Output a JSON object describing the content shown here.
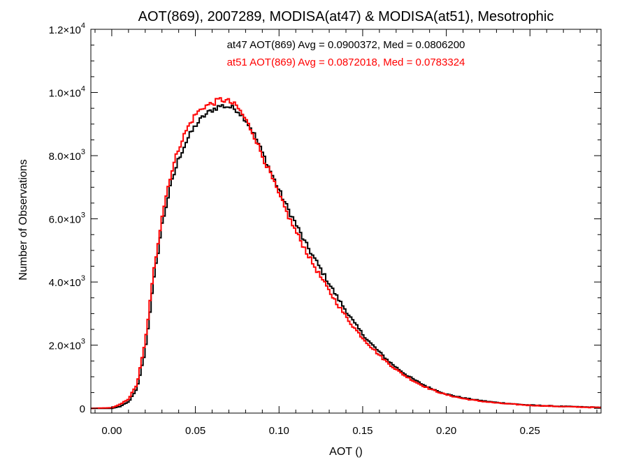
{
  "chart_data": {
    "type": "line",
    "step": true,
    "title": "AOT(869), 2007289, MODISA(at47) & MODISA(at51), Mesotrophic",
    "xlabel": "AOT ()",
    "ylabel": "Number of Observations",
    "xlim": [
      -0.0125,
      0.2925
    ],
    "ylim": [
      -150,
      12000
    ],
    "grid": false,
    "x_ticks": [
      {
        "v": 0.0,
        "label": "0.00"
      },
      {
        "v": 0.05,
        "label": "0.05"
      },
      {
        "v": 0.1,
        "label": "0.10"
      },
      {
        "v": 0.15,
        "label": "0.15"
      },
      {
        "v": 0.2,
        "label": "0.20"
      },
      {
        "v": 0.25,
        "label": "0.25"
      }
    ],
    "y_ticks": [
      {
        "v": 0,
        "mant": "0",
        "exp": ""
      },
      {
        "v": 2000,
        "mant": "2.0×10",
        "exp": "3"
      },
      {
        "v": 4000,
        "mant": "4.0×10",
        "exp": "3"
      },
      {
        "v": 6000,
        "mant": "6.0×10",
        "exp": "3"
      },
      {
        "v": 8000,
        "mant": "8.0×10",
        "exp": "3"
      },
      {
        "v": 10000,
        "mant": "1.0×10",
        "exp": "4"
      },
      {
        "v": 12000,
        "mant": "1.2×10",
        "exp": "4"
      }
    ],
    "annotations": [
      {
        "text": "at47 AOT(869) Avg = 0.0900372, Med = 0.0806200",
        "color": "#000000"
      },
      {
        "text": "at51 AOT(869) Avg = 0.0872018, Med = 0.0783324",
        "color": "#ff0000"
      }
    ],
    "series": [
      {
        "color": "#000000",
        "points": [
          [
            -0.0125,
            0
          ],
          [
            0.0,
            0
          ],
          [
            0.005,
            60
          ],
          [
            0.01,
            200
          ],
          [
            0.015,
            600
          ],
          [
            0.02,
            1800
          ],
          [
            0.025,
            4000
          ],
          [
            0.03,
            5800
          ],
          [
            0.035,
            7000
          ],
          [
            0.04,
            7900
          ],
          [
            0.045,
            8500
          ],
          [
            0.05,
            8950
          ],
          [
            0.055,
            9250
          ],
          [
            0.06,
            9450
          ],
          [
            0.065,
            9580
          ],
          [
            0.07,
            9550
          ],
          [
            0.075,
            9450
          ],
          [
            0.08,
            9150
          ],
          [
            0.085,
            8700
          ],
          [
            0.09,
            8100
          ],
          [
            0.095,
            7500
          ],
          [
            0.1,
            6900
          ],
          [
            0.105,
            6350
          ],
          [
            0.11,
            5850
          ],
          [
            0.115,
            5300
          ],
          [
            0.12,
            4850
          ],
          [
            0.125,
            4400
          ],
          [
            0.13,
            3950
          ],
          [
            0.135,
            3500
          ],
          [
            0.14,
            3100
          ],
          [
            0.145,
            2700
          ],
          [
            0.15,
            2350
          ],
          [
            0.155,
            2050
          ],
          [
            0.16,
            1780
          ],
          [
            0.165,
            1520
          ],
          [
            0.17,
            1300
          ],
          [
            0.175,
            1100
          ],
          [
            0.18,
            930
          ],
          [
            0.185,
            780
          ],
          [
            0.19,
            650
          ],
          [
            0.195,
            550
          ],
          [
            0.2,
            450
          ],
          [
            0.21,
            330
          ],
          [
            0.22,
            250
          ],
          [
            0.23,
            185
          ],
          [
            0.24,
            140
          ],
          [
            0.25,
            100
          ],
          [
            0.26,
            80
          ],
          [
            0.27,
            60
          ],
          [
            0.28,
            45
          ],
          [
            0.2925,
            30
          ]
        ]
      },
      {
        "color": "#ff0000",
        "points": [
          [
            -0.0125,
            0
          ],
          [
            0.0,
            20
          ],
          [
            0.005,
            120
          ],
          [
            0.01,
            300
          ],
          [
            0.015,
            750
          ],
          [
            0.02,
            2100
          ],
          [
            0.025,
            4300
          ],
          [
            0.03,
            6100
          ],
          [
            0.035,
            7350
          ],
          [
            0.04,
            8250
          ],
          [
            0.045,
            8850
          ],
          [
            0.05,
            9300
          ],
          [
            0.055,
            9550
          ],
          [
            0.06,
            9650
          ],
          [
            0.065,
            9780
          ],
          [
            0.07,
            9720
          ],
          [
            0.075,
            9550
          ],
          [
            0.08,
            9150
          ],
          [
            0.085,
            8650
          ],
          [
            0.09,
            8000
          ],
          [
            0.095,
            7400
          ],
          [
            0.1,
            6750
          ],
          [
            0.105,
            6150
          ],
          [
            0.11,
            5600
          ],
          [
            0.115,
            5100
          ],
          [
            0.12,
            4600
          ],
          [
            0.125,
            4150
          ],
          [
            0.13,
            3700
          ],
          [
            0.135,
            3300
          ],
          [
            0.14,
            2900
          ],
          [
            0.145,
            2550
          ],
          [
            0.15,
            2230
          ],
          [
            0.155,
            1950
          ],
          [
            0.16,
            1680
          ],
          [
            0.165,
            1440
          ],
          [
            0.17,
            1230
          ],
          [
            0.175,
            1040
          ],
          [
            0.18,
            880
          ],
          [
            0.185,
            740
          ],
          [
            0.19,
            620
          ],
          [
            0.195,
            520
          ],
          [
            0.2,
            430
          ],
          [
            0.21,
            310
          ],
          [
            0.22,
            230
          ],
          [
            0.23,
            170
          ],
          [
            0.24,
            130
          ],
          [
            0.25,
            95
          ],
          [
            0.26,
            75
          ],
          [
            0.27,
            55
          ],
          [
            0.28,
            40
          ],
          [
            0.2925,
            25
          ]
        ]
      }
    ]
  }
}
